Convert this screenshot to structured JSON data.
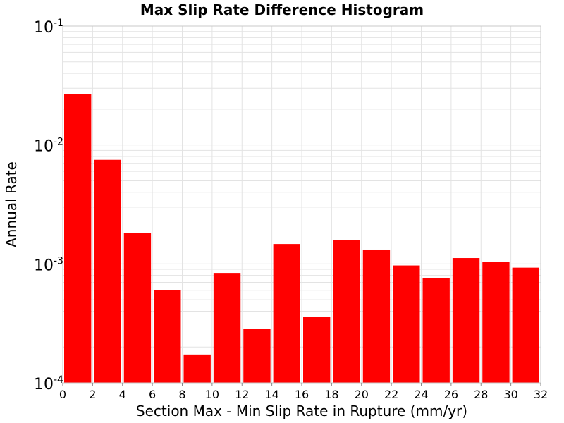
{
  "chart_data": {
    "type": "bar",
    "title": "Max Slip Rate Difference Histogram",
    "xlabel": "Section Max - Min Slip Rate in Rupture (mm/yr)",
    "ylabel": "Annual Rate",
    "x_scale": "linear",
    "y_scale": "log",
    "xlim": [
      0,
      32
    ],
    "ylim": [
      0.0001,
      0.1
    ],
    "x_ticks": [
      "0",
      "2",
      "4",
      "6",
      "8",
      "10",
      "12",
      "14",
      "16",
      "18",
      "20",
      "22",
      "24",
      "26",
      "28",
      "30",
      "32"
    ],
    "y_ticks": [
      {
        "base": "10",
        "exp": "-4"
      },
      {
        "base": "10",
        "exp": "-3"
      },
      {
        "base": "10",
        "exp": "-2"
      },
      {
        "base": "10",
        "exp": "-1"
      }
    ],
    "bin_width": 2,
    "bins": [
      1,
      3,
      5,
      7,
      9,
      11,
      13,
      15,
      17,
      19,
      21,
      23,
      25,
      27,
      29,
      31
    ],
    "values": [
      0.0268,
      0.0075,
      0.00182,
      0.0006,
      0.000173,
      0.00084,
      0.000285,
      0.00147,
      0.00036,
      0.00158,
      0.00132,
      0.00097,
      0.00076,
      0.00112,
      0.00104,
      0.00093
    ],
    "bar_color": "#ff0000",
    "grid": true,
    "grid_color": "#e3e3e3",
    "frame_color": "#c8c8c8"
  }
}
